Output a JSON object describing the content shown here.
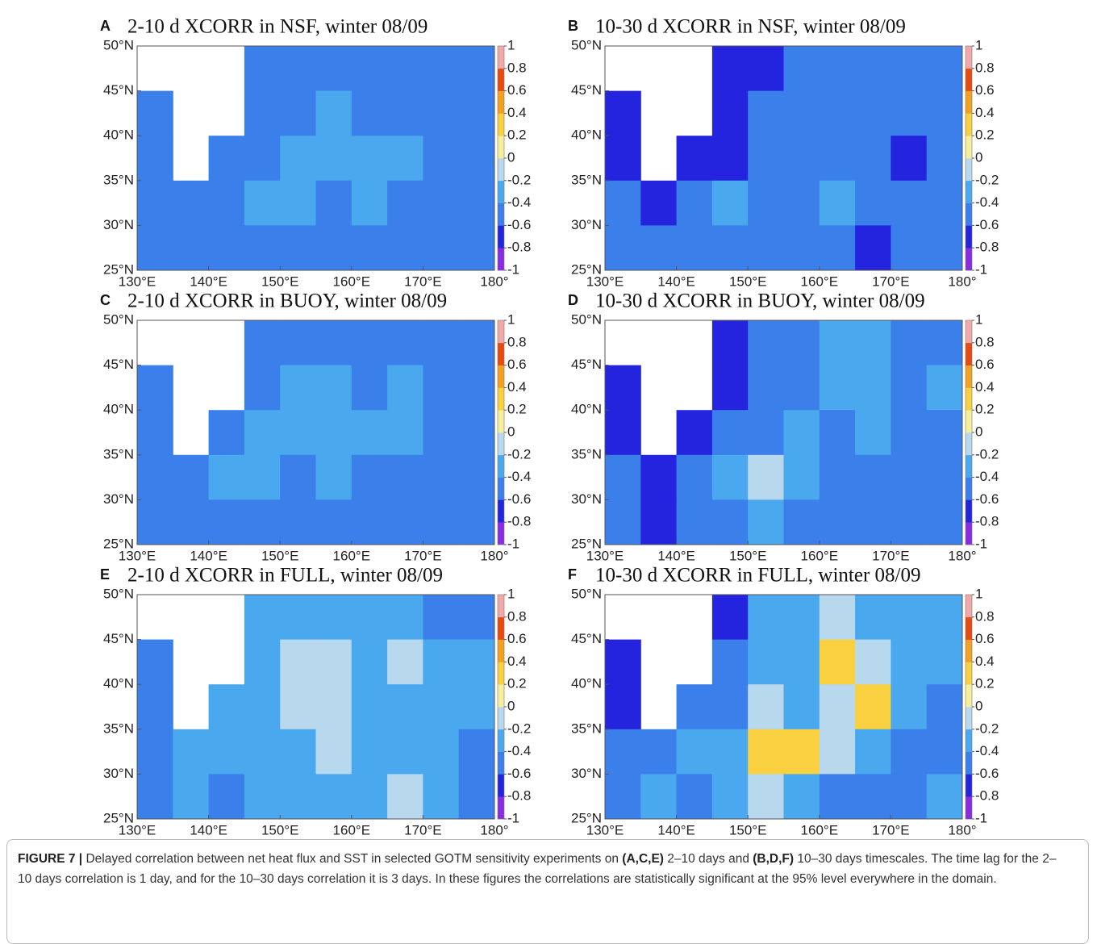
{
  "chart_data": [
    {
      "type": "contour",
      "panel_label": "A",
      "title": "2-10 d XCORR in NSF, winter 08/09",
      "xlim": [
        130,
        180
      ],
      "ylim": [
        25,
        50
      ],
      "xticks": [
        {
          "value": 130,
          "label": "130°E"
        },
        {
          "value": 140,
          "label": "140°E"
        },
        {
          "value": 150,
          "label": "150°E"
        },
        {
          "value": 160,
          "label": "160°E"
        },
        {
          "value": 170,
          "label": "170°E"
        },
        {
          "value": 180,
          "label": "180°"
        }
      ],
      "yticks": [
        {
          "value": 25,
          "label": "25°N"
        },
        {
          "value": 30,
          "label": "30°N"
        },
        {
          "value": 35,
          "label": "35°N"
        },
        {
          "value": 40,
          "label": "40°N"
        },
        {
          "value": 45,
          "label": "45°N"
        },
        {
          "value": 50,
          "label": "50°N"
        }
      ],
      "clim": [
        -1,
        1
      ],
      "cticks": [
        1,
        0.8,
        0.6,
        0.4,
        0.2,
        0,
        -0.2,
        -0.4,
        -0.6,
        -0.8,
        -1
      ],
      "colors": [
        "#8a2be2",
        "#2424de",
        "#3a7fea",
        "#4aa8ee",
        "#b8d8ee",
        "#f6ee9a",
        "#f8d040",
        "#f4a020",
        "#e84a10",
        "#f2a8a8"
      ],
      "x": [
        132.5,
        137.5,
        142.5,
        147.5,
        152.5,
        157.5,
        162.5,
        167.5,
        172.5,
        177.5
      ],
      "y": [
        47.5,
        42.5,
        37.5,
        32.5,
        27.5
      ],
      "z": [
        [
          null,
          null,
          null,
          -0.5,
          -0.5,
          -0.5,
          -0.5,
          -0.5,
          -0.5,
          -0.5
        ],
        [
          -0.5,
          null,
          null,
          -0.5,
          -0.5,
          -0.4,
          -0.5,
          -0.5,
          -0.5,
          -0.5
        ],
        [
          -0.5,
          null,
          -0.5,
          -0.5,
          -0.4,
          -0.3,
          -0.4,
          -0.3,
          -0.5,
          -0.5
        ],
        [
          -0.5,
          -0.5,
          -0.5,
          -0.4,
          -0.4,
          -0.5,
          -0.4,
          -0.5,
          -0.5,
          -0.5
        ],
        [
          -0.5,
          -0.5,
          -0.5,
          -0.5,
          -0.5,
          -0.5,
          -0.5,
          -0.5,
          -0.5,
          -0.5
        ]
      ]
    },
    {
      "type": "contour",
      "panel_label": "B",
      "title": "10-30 d XCORR in NSF, winter 08/09",
      "xlim": [
        130,
        180
      ],
      "ylim": [
        25,
        50
      ],
      "xticks": [
        {
          "value": 130,
          "label": "130°E"
        },
        {
          "value": 140,
          "label": "140°E"
        },
        {
          "value": 150,
          "label": "150°E"
        },
        {
          "value": 160,
          "label": "160°E"
        },
        {
          "value": 170,
          "label": "170°E"
        },
        {
          "value": 180,
          "label": "180°"
        }
      ],
      "yticks": [
        {
          "value": 25,
          "label": "25°N"
        },
        {
          "value": 30,
          "label": "30°N"
        },
        {
          "value": 35,
          "label": "35°N"
        },
        {
          "value": 40,
          "label": "40°N"
        },
        {
          "value": 45,
          "label": "45°N"
        },
        {
          "value": 50,
          "label": "50°N"
        }
      ],
      "clim": [
        -1,
        1
      ],
      "cticks": [
        1,
        0.8,
        0.6,
        0.4,
        0.2,
        0,
        -0.2,
        -0.4,
        -0.6,
        -0.8,
        -1
      ],
      "colors": [
        "#8a2be2",
        "#2424de",
        "#3a7fea",
        "#4aa8ee",
        "#b8d8ee",
        "#f6ee9a",
        "#f8d040",
        "#f4a020",
        "#e84a10",
        "#f2a8a8"
      ],
      "x": [
        132.5,
        137.5,
        142.5,
        147.5,
        152.5,
        157.5,
        162.5,
        167.5,
        172.5,
        177.5
      ],
      "y": [
        47.5,
        42.5,
        37.5,
        32.5,
        27.5
      ],
      "z": [
        [
          null,
          null,
          null,
          -0.7,
          -0.7,
          -0.5,
          -0.5,
          -0.6,
          -0.5,
          -0.5
        ],
        [
          -0.7,
          null,
          null,
          -0.7,
          -0.6,
          -0.5,
          -0.6,
          -0.5,
          -0.6,
          -0.5
        ],
        [
          -0.7,
          null,
          -0.7,
          -0.7,
          -0.5,
          -0.5,
          -0.6,
          -0.5,
          -0.7,
          -0.5
        ],
        [
          -0.5,
          -0.7,
          -0.6,
          -0.3,
          -0.5,
          -0.5,
          -0.4,
          -0.5,
          -0.6,
          -0.5
        ],
        [
          -0.5,
          -0.6,
          -0.5,
          -0.5,
          -0.6,
          -0.5,
          -0.5,
          -0.7,
          -0.6,
          -0.5
        ]
      ]
    },
    {
      "type": "contour",
      "panel_label": "C",
      "title": "2-10 d XCORR in BUOY, winter 08/09",
      "xlim": [
        130,
        180
      ],
      "ylim": [
        25,
        50
      ],
      "xticks": [
        {
          "value": 130,
          "label": "130°E"
        },
        {
          "value": 140,
          "label": "140°E"
        },
        {
          "value": 150,
          "label": "150°E"
        },
        {
          "value": 160,
          "label": "160°E"
        },
        {
          "value": 170,
          "label": "170°E"
        },
        {
          "value": 180,
          "label": "180°"
        }
      ],
      "yticks": [
        {
          "value": 25,
          "label": "25°N"
        },
        {
          "value": 30,
          "label": "30°N"
        },
        {
          "value": 35,
          "label": "35°N"
        },
        {
          "value": 40,
          "label": "40°N"
        },
        {
          "value": 45,
          "label": "45°N"
        },
        {
          "value": 50,
          "label": "50°N"
        }
      ],
      "clim": [
        -1,
        1
      ],
      "cticks": [
        1,
        0.8,
        0.6,
        0.4,
        0.2,
        0,
        -0.2,
        -0.4,
        -0.6,
        -0.8,
        -1
      ],
      "colors": [
        "#8a2be2",
        "#2424de",
        "#3a7fea",
        "#4aa8ee",
        "#b8d8ee",
        "#f6ee9a",
        "#f8d040",
        "#f4a020",
        "#e84a10",
        "#f2a8a8"
      ],
      "x": [
        132.5,
        137.5,
        142.5,
        147.5,
        152.5,
        157.5,
        162.5,
        167.5,
        172.5,
        177.5
      ],
      "y": [
        47.5,
        42.5,
        37.5,
        32.5,
        27.5
      ],
      "z": [
        [
          null,
          null,
          null,
          -0.5,
          -0.5,
          -0.5,
          -0.5,
          -0.5,
          -0.5,
          -0.5
        ],
        [
          -0.5,
          null,
          null,
          -0.5,
          -0.3,
          -0.4,
          -0.5,
          -0.4,
          -0.5,
          -0.5
        ],
        [
          -0.5,
          null,
          -0.5,
          -0.4,
          -0.3,
          -0.4,
          -0.3,
          -0.4,
          -0.5,
          -0.5
        ],
        [
          -0.5,
          -0.5,
          -0.4,
          -0.4,
          -0.5,
          -0.4,
          -0.5,
          -0.5,
          -0.5,
          -0.5
        ],
        [
          -0.5,
          -0.5,
          -0.5,
          -0.5,
          -0.5,
          -0.5,
          -0.5,
          -0.5,
          -0.5,
          -0.5
        ]
      ]
    },
    {
      "type": "contour",
      "panel_label": "D",
      "title": "10-30 d XCORR in BUOY, winter 08/09",
      "xlim": [
        130,
        180
      ],
      "ylim": [
        25,
        50
      ],
      "xticks": [
        {
          "value": 130,
          "label": "130°E"
        },
        {
          "value": 140,
          "label": "140°E"
        },
        {
          "value": 150,
          "label": "150°E"
        },
        {
          "value": 160,
          "label": "160°E"
        },
        {
          "value": 170,
          "label": "170°E"
        },
        {
          "value": 180,
          "label": "180°"
        }
      ],
      "yticks": [
        {
          "value": 25,
          "label": "25°N"
        },
        {
          "value": 30,
          "label": "30°N"
        },
        {
          "value": 35,
          "label": "35°N"
        },
        {
          "value": 40,
          "label": "40°N"
        },
        {
          "value": 45,
          "label": "45°N"
        },
        {
          "value": 50,
          "label": "50°N"
        }
      ],
      "clim": [
        -1,
        1
      ],
      "cticks": [
        1,
        0.8,
        0.6,
        0.4,
        0.2,
        0,
        -0.2,
        -0.4,
        -0.6,
        -0.8,
        -1
      ],
      "colors": [
        "#8a2be2",
        "#2424de",
        "#3a7fea",
        "#4aa8ee",
        "#b8d8ee",
        "#f6ee9a",
        "#f8d040",
        "#f4a020",
        "#e84a10",
        "#f2a8a8"
      ],
      "x": [
        132.5,
        137.5,
        142.5,
        147.5,
        152.5,
        157.5,
        162.5,
        167.5,
        172.5,
        177.5
      ],
      "y": [
        47.5,
        42.5,
        37.5,
        32.5,
        27.5
      ],
      "z": [
        [
          null,
          null,
          null,
          -0.7,
          -0.5,
          -0.5,
          -0.3,
          -0.4,
          -0.5,
          -0.5
        ],
        [
          -0.7,
          null,
          null,
          -0.7,
          -0.5,
          -0.5,
          -0.3,
          -0.4,
          -0.5,
          -0.4
        ],
        [
          -0.7,
          null,
          -0.7,
          -0.6,
          -0.5,
          -0.4,
          -0.5,
          -0.4,
          -0.6,
          -0.5
        ],
        [
          -0.5,
          -0.7,
          -0.6,
          -0.4,
          -0.2,
          -0.4,
          -0.5,
          -0.6,
          -0.5,
          -0.5
        ],
        [
          -0.6,
          -0.7,
          -0.6,
          -0.5,
          -0.3,
          -0.5,
          -0.5,
          -0.6,
          -0.5,
          -0.5
        ]
      ]
    },
    {
      "type": "contour",
      "panel_label": "E",
      "title": "2-10 d XCORR in FULL, winter 08/09",
      "xlim": [
        130,
        180
      ],
      "ylim": [
        25,
        50
      ],
      "xticks": [
        {
          "value": 130,
          "label": "130°E"
        },
        {
          "value": 140,
          "label": "140°E"
        },
        {
          "value": 150,
          "label": "150°E"
        },
        {
          "value": 160,
          "label": "160°E"
        },
        {
          "value": 170,
          "label": "170°E"
        },
        {
          "value": 180,
          "label": "180°"
        }
      ],
      "yticks": [
        {
          "value": 25,
          "label": "25°N"
        },
        {
          "value": 30,
          "label": "30°N"
        },
        {
          "value": 35,
          "label": "35°N"
        },
        {
          "value": 40,
          "label": "40°N"
        },
        {
          "value": 45,
          "label": "45°N"
        },
        {
          "value": 50,
          "label": "50°N"
        }
      ],
      "clim": [
        -1,
        1
      ],
      "cticks": [
        1,
        0.8,
        0.6,
        0.4,
        0.2,
        0,
        -0.2,
        -0.4,
        -0.6,
        -0.8,
        -1
      ],
      "colors": [
        "#8a2be2",
        "#2424de",
        "#3a7fea",
        "#4aa8ee",
        "#b8d8ee",
        "#f6ee9a",
        "#f8d040",
        "#f4a020",
        "#e84a10",
        "#f2a8a8"
      ],
      "x": [
        132.5,
        137.5,
        142.5,
        147.5,
        152.5,
        157.5,
        162.5,
        167.5,
        172.5,
        177.5
      ],
      "y": [
        47.5,
        42.5,
        37.5,
        32.5,
        27.5
      ],
      "z": [
        [
          null,
          null,
          null,
          -0.3,
          -0.3,
          -0.3,
          -0.4,
          -0.3,
          -0.5,
          -0.5
        ],
        [
          -0.5,
          null,
          null,
          -0.3,
          -0.1,
          -0.1,
          -0.3,
          -0.2,
          -0.3,
          -0.4
        ],
        [
          -0.5,
          null,
          -0.4,
          -0.3,
          -0.2,
          -0.1,
          -0.3,
          -0.3,
          -0.3,
          -0.4
        ],
        [
          -0.5,
          -0.3,
          -0.4,
          -0.3,
          -0.3,
          -0.2,
          -0.3,
          -0.3,
          -0.4,
          -0.5
        ],
        [
          -0.5,
          -0.4,
          -0.5,
          -0.4,
          -0.3,
          -0.4,
          -0.3,
          -0.2,
          -0.4,
          -0.5
        ]
      ]
    },
    {
      "type": "contour",
      "panel_label": "F",
      "title": "10-30 d XCORR in FULL, winter 08/09",
      "xlim": [
        130,
        180
      ],
      "ylim": [
        25,
        50
      ],
      "xticks": [
        {
          "value": 130,
          "label": "130°E"
        },
        {
          "value": 140,
          "label": "140°E"
        },
        {
          "value": 150,
          "label": "150°E"
        },
        {
          "value": 160,
          "label": "160°E"
        },
        {
          "value": 170,
          "label": "170°E"
        },
        {
          "value": 180,
          "label": "180°"
        }
      ],
      "yticks": [
        {
          "value": 25,
          "label": "25°N"
        },
        {
          "value": 30,
          "label": "30°N"
        },
        {
          "value": 35,
          "label": "35°N"
        },
        {
          "value": 40,
          "label": "40°N"
        },
        {
          "value": 45,
          "label": "45°N"
        },
        {
          "value": 50,
          "label": "50°N"
        }
      ],
      "clim": [
        -1,
        1
      ],
      "cticks": [
        1,
        0.8,
        0.6,
        0.4,
        0.2,
        0,
        -0.2,
        -0.4,
        -0.6,
        -0.8,
        -1
      ],
      "colors": [
        "#8a2be2",
        "#2424de",
        "#3a7fea",
        "#4aa8ee",
        "#b8d8ee",
        "#f6ee9a",
        "#f8d040",
        "#f4a020",
        "#e84a10",
        "#f2a8a8"
      ],
      "x": [
        132.5,
        137.5,
        142.5,
        147.5,
        152.5,
        157.5,
        162.5,
        167.5,
        172.5,
        177.5
      ],
      "y": [
        47.5,
        42.5,
        37.5,
        32.5,
        27.5
      ],
      "z": [
        [
          null,
          null,
          null,
          -0.7,
          -0.4,
          -0.4,
          -0.2,
          -0.4,
          -0.4,
          -0.4
        ],
        [
          -0.7,
          null,
          null,
          -0.5,
          -0.3,
          -0.3,
          0.3,
          -0.2,
          -0.3,
          -0.4
        ],
        [
          -0.8,
          null,
          -0.6,
          -0.5,
          -0.2,
          -0.3,
          -0.1,
          0.2,
          -0.4,
          -0.5
        ],
        [
          -0.5,
          -0.5,
          -0.4,
          -0.3,
          0.3,
          0.2,
          -0.2,
          -0.3,
          -0.5,
          -0.5
        ],
        [
          -0.5,
          -0.4,
          -0.5,
          -0.4,
          -0.2,
          -0.4,
          -0.5,
          -0.5,
          -0.5,
          -0.4
        ]
      ]
    }
  ],
  "caption": {
    "segments": [
      {
        "text": "FIGURE 7 |",
        "bold": true
      },
      {
        "text": " Delayed correlation between net heat flux and SST in selected GOTM sensitivity experiments on "
      },
      {
        "text": "(A,C,E)",
        "bold": true
      },
      {
        "text": " 2–10 days and "
      },
      {
        "text": "(B,D,F)",
        "bold": true
      },
      {
        "text": " 10–30 days timescales. The time lag for the 2–10 days correlation is 1 day, and for the 10–30 days correlation it is 3 days. In these figures the correlations are statistically significant at the 95% level everywhere in the domain."
      }
    ]
  }
}
